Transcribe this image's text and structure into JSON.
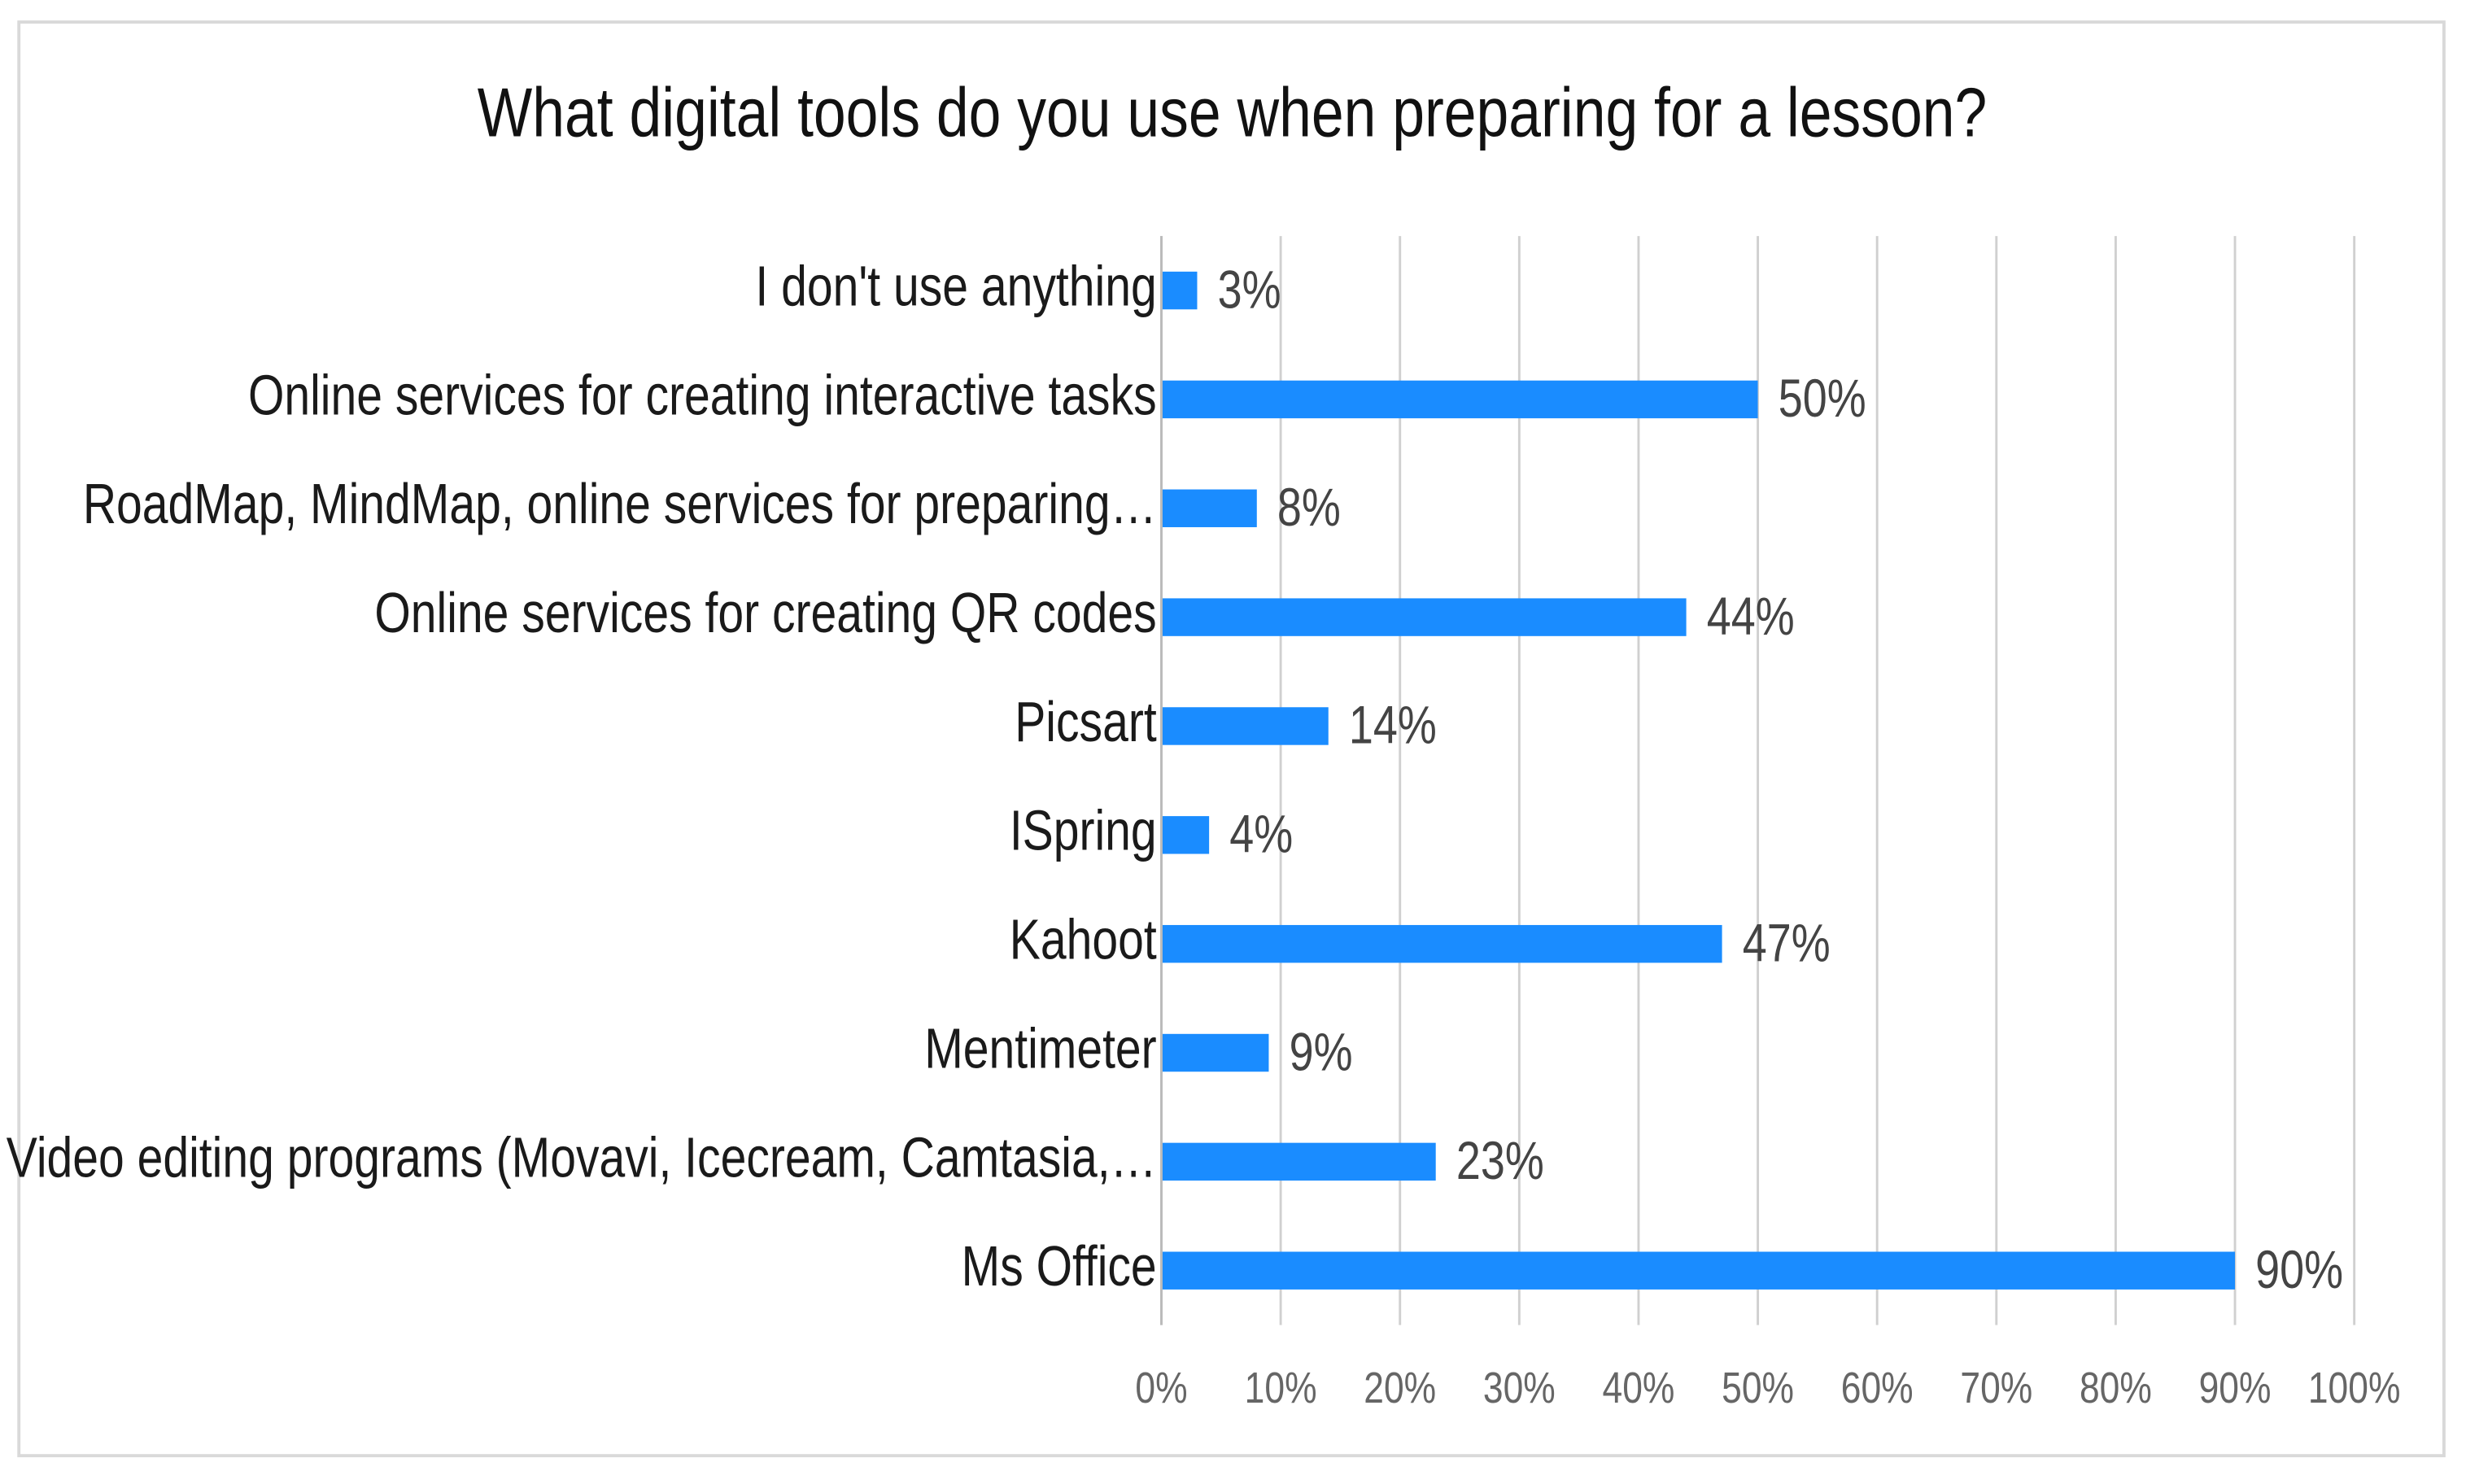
{
  "chart_data": {
    "type": "bar",
    "orientation": "horizontal",
    "title": "What digital tools do you use when preparing for a lesson?",
    "categories": [
      "I don't use anything",
      "Online services for creating interactive tasks",
      "RoadMap, MindMap, online services for preparing…",
      "Online services for creating QR codes",
      "Picsart",
      "ISpring",
      "Kahoot",
      "Mentimeter",
      "Video editing programs (Movavi, Icecream, Camtasia,…",
      "Ms Office"
    ],
    "values": [
      3,
      50,
      8,
      44,
      14,
      4,
      47,
      9,
      23,
      90
    ],
    "value_labels": [
      "3%",
      "50%",
      "8%",
      "44%",
      "14%",
      "4%",
      "47%",
      "9%",
      "23%",
      "90%"
    ],
    "color": "#1a8cff",
    "xlim": [
      0,
      100
    ],
    "xticks": [
      {
        "value": 0,
        "label": "0%"
      },
      {
        "value": 10,
        "label": "10%"
      },
      {
        "value": 20,
        "label": "20%"
      },
      {
        "value": 30,
        "label": "30%"
      },
      {
        "value": 40,
        "label": "40%"
      },
      {
        "value": 50,
        "label": "50%"
      },
      {
        "value": 60,
        "label": "60%"
      },
      {
        "value": 70,
        "label": "70%"
      },
      {
        "value": 80,
        "label": "80%"
      },
      {
        "value": 90,
        "label": "90%"
      },
      {
        "value": 100,
        "label": "100%"
      }
    ],
    "grid": true
  }
}
